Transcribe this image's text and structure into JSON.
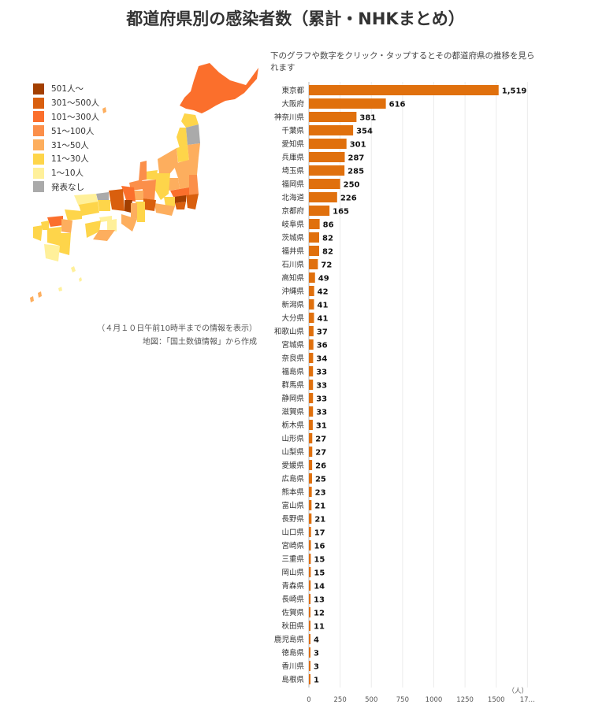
{
  "title": "都道府県別の感染者数（累計・NHKまとめ）",
  "instruction": "下のグラフや数字をクリック・タップするとその都道府県の推移を見られます",
  "legend": [
    {
      "label": "501人〜",
      "color": "#a33f00"
    },
    {
      "label": "301〜500人",
      "color": "#d95f0e"
    },
    {
      "label": "101〜300人",
      "color": "#fb6f2c"
    },
    {
      "label": "51〜100人",
      "color": "#fb8f4a"
    },
    {
      "label": "31〜50人",
      "color": "#fdae5e"
    },
    {
      "label": "11〜30人",
      "color": "#fed54a"
    },
    {
      "label": "1〜10人",
      "color": "#fff09a"
    },
    {
      "label": "発表なし",
      "color": "#aaaaaa"
    }
  ],
  "notes": {
    "line1": "（４月１０日午前10時半までの情報を表示）",
    "line2": "地図：「国土数値情報」から作成"
  },
  "chart_data": {
    "type": "bar",
    "orientation": "horizontal",
    "bar_color": "#e0700d",
    "unit": "（人）",
    "xlim": [
      0,
      1750
    ],
    "xticks": [
      "0",
      "250",
      "500",
      "750",
      "1000",
      "1250",
      "1500",
      "17…"
    ],
    "grid": true,
    "categories": [
      "東京都",
      "大阪府",
      "神奈川県",
      "千葉県",
      "愛知県",
      "兵庫県",
      "埼玉県",
      "福岡県",
      "北海道",
      "京都府",
      "岐阜県",
      "茨城県",
      "福井県",
      "石川県",
      "高知県",
      "沖縄県",
      "新潟県",
      "大分県",
      "和歌山県",
      "宮城県",
      "奈良県",
      "福島県",
      "群馬県",
      "静岡県",
      "滋賀県",
      "栃木県",
      "山形県",
      "山梨県",
      "愛媛県",
      "広島県",
      "熊本県",
      "富山県",
      "長野県",
      "山口県",
      "宮崎県",
      "三重県",
      "岡山県",
      "青森県",
      "長崎県",
      "佐賀県",
      "秋田県",
      "鹿児島県",
      "徳島県",
      "香川県",
      "島根県"
    ],
    "values": [
      1519,
      616,
      381,
      354,
      301,
      287,
      285,
      250,
      226,
      165,
      86,
      82,
      82,
      72,
      49,
      42,
      41,
      41,
      37,
      36,
      34,
      33,
      33,
      33,
      33,
      31,
      27,
      27,
      26,
      25,
      23,
      21,
      21,
      17,
      16,
      15,
      15,
      14,
      13,
      12,
      11,
      4,
      3,
      3,
      1
    ],
    "value_labels": [
      "1,519",
      "616",
      "381",
      "354",
      "301",
      "287",
      "285",
      "250",
      "226",
      "165",
      "86",
      "82",
      "82",
      "72",
      "49",
      "42",
      "41",
      "41",
      "37",
      "36",
      "34",
      "33",
      "33",
      "33",
      "33",
      "31",
      "27",
      "27",
      "26",
      "25",
      "23",
      "21",
      "21",
      "17",
      "16",
      "15",
      "15",
      "14",
      "13",
      "12",
      "11",
      "4",
      "3",
      "3",
      "1"
    ]
  }
}
